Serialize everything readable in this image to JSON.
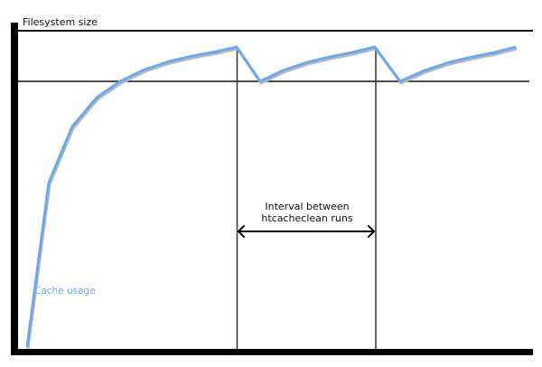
{
  "diagram": {
    "y_axis_label": "Filesystem size",
    "curve_label": "Cache usage",
    "interval_label_line1": "Interval between",
    "interval_label_line2": "htcacheclean runs",
    "colors": {
      "curve": "#6aa8f0",
      "lines": "#111111"
    }
  }
}
